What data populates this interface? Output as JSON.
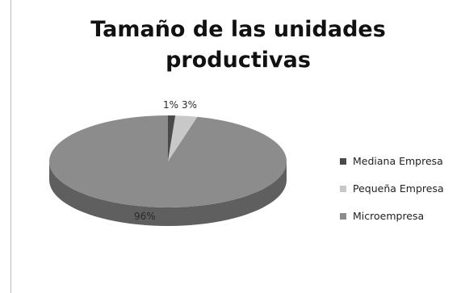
{
  "chart_data": {
    "type": "pie",
    "title": "Tamaño de las unidades productivas",
    "categories": [
      "Mediana Empresa",
      "Pequeña Empresa",
      "Microempresa"
    ],
    "values": [
      1,
      3,
      96
    ],
    "labels": [
      "1%",
      "3%",
      "96%"
    ],
    "colors": [
      "#4a4a4a",
      "#c8c8c8",
      "#8c8c8c"
    ],
    "legend_position": "right"
  }
}
